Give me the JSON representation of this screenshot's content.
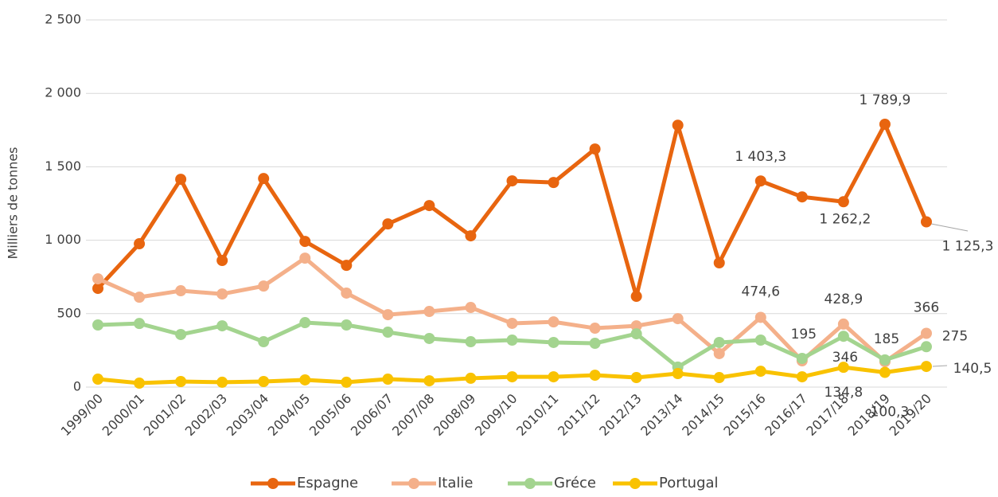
{
  "chart_data": {
    "type": "line",
    "y_label": "Milliers de tonnes",
    "categories": [
      "1999/00",
      "2000/01",
      "2001/02",
      "2002/03",
      "2003/04",
      "2004/05",
      "2005/06",
      "2006/07",
      "2007/08",
      "2008/09",
      "2009/10",
      "2010/11",
      "2011/12",
      "2012/13",
      "2013/14",
      "2014/15",
      "2015/16",
      "2016/17",
      "2017/18",
      "2018/19",
      "2019/20"
    ],
    "series": [
      {
        "name": "Espagne",
        "color": "#e8650f",
        "label_color": "#e8650f",
        "values": [
          672,
          976,
          1415,
          862,
          1420,
          992,
          829,
          1111,
          1236,
          1030,
          1404,
          1393,
          1621,
          618,
          1783,
          846,
          1403.3,
          1295,
          1262.2,
          1789.9,
          1125.3
        ],
        "value_labels": [
          null,
          null,
          null,
          null,
          null,
          null,
          null,
          null,
          null,
          null,
          null,
          null,
          null,
          null,
          null,
          null,
          "1 403,3",
          null,
          "1 262,2",
          "1 789,9",
          "1 125,3"
        ]
      },
      {
        "name": "Italie",
        "color": "#f4b08a",
        "label_color": "#ef8a4c",
        "values": [
          737,
          612,
          656,
          634,
          688,
          878,
          640,
          493,
          515,
          542,
          434,
          444,
          401,
          417,
          466,
          228,
          474.6,
          179,
          428.9,
          173,
          366
        ],
        "value_labels": [
          null,
          null,
          null,
          null,
          null,
          null,
          null,
          null,
          null,
          null,
          null,
          null,
          null,
          null,
          null,
          null,
          "474,6",
          null,
          "428,9",
          null,
          null
        ]
      },
      {
        "name": "Gréce",
        "color": "#a3d48f",
        "label_color": "#6aa83f",
        "values": [
          423,
          433,
          358,
          417,
          309,
          439,
          423,
          374,
          331,
          309,
          320,
          304,
          298,
          363,
          136,
          304,
          320,
          195,
          346,
          185,
          275
        ]
      },
      {
        "name": "Portugal",
        "color": "#f9c200",
        "label_color": "#f9c200",
        "values": [
          54,
          27,
          38,
          33,
          38,
          49,
          33,
          54,
          43,
          60,
          70,
          70,
          81,
          65,
          92,
          65,
          108,
          70,
          134.8,
          100.3,
          140.5
        ],
        "value_labels": [
          null,
          null,
          null,
          null,
          null,
          null,
          null,
          null,
          null,
          null,
          null,
          null,
          null,
          null,
          null,
          null,
          null,
          null,
          "134,8",
          "100,3",
          "140,5"
        ]
      }
    ],
    "ylim": [
      0,
      2500
    ],
    "yticks": [
      0,
      500,
      {
        "value": 1000,
        "label": "1 000"
      },
      {
        "value": 1500,
        "label": "1 500"
      },
      {
        "value": 2000,
        "label": "2 000"
      },
      {
        "value": 2500,
        "label": "2 500"
      }
    ],
    "grid": true,
    "legend": "bottom"
  }
}
